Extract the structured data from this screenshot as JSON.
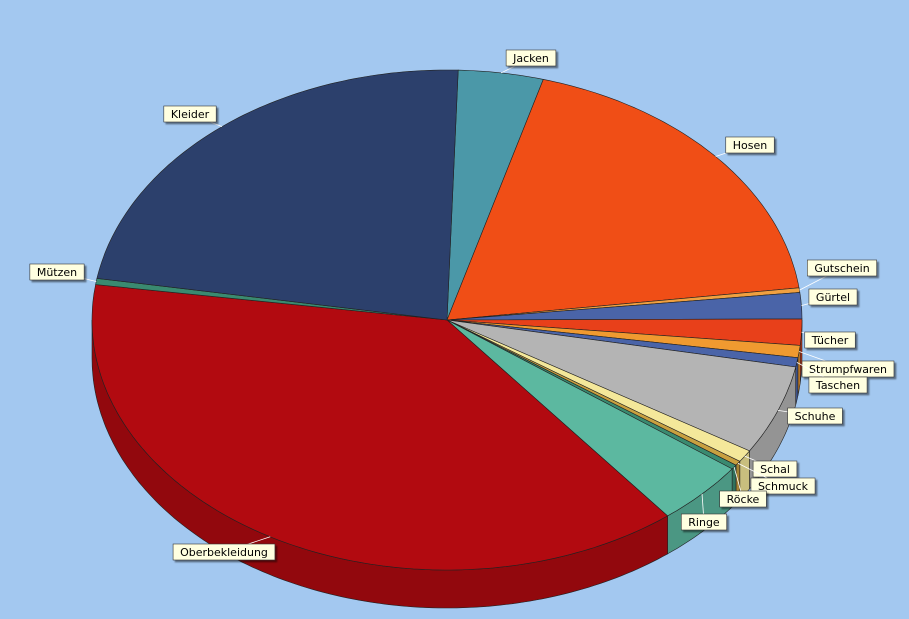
{
  "chart_data": {
    "type": "pie",
    "categories": [
      "Jacken",
      "Hosen",
      "Gutschein",
      "Gürtel",
      "Tücher",
      "Strumpfwaren",
      "Taschen",
      "Schuhe",
      "Schal",
      "Schmuck",
      "Röcke",
      "Ringe",
      "Oberbekleidung",
      "Mützen",
      "Kleider"
    ],
    "values": [
      3.9,
      18.7,
      0.3,
      1.7,
      1.7,
      0.8,
      0.6,
      5.8,
      0.8,
      0.3,
      0.3,
      4.2,
      38.2,
      0.4,
      23.0
    ],
    "colors": [
      "#4b98a8",
      "#f04e16",
      "#f0a040",
      "#4a64a8",
      "#e8401a",
      "#f09a30",
      "#4a64a8",
      "#b4b4b4",
      "#f4e89a",
      "#c8a040",
      "#3a8a70",
      "#5cb8a0",
      "#b20a10",
      "#3a8a70",
      "#2c406c"
    ]
  }
}
